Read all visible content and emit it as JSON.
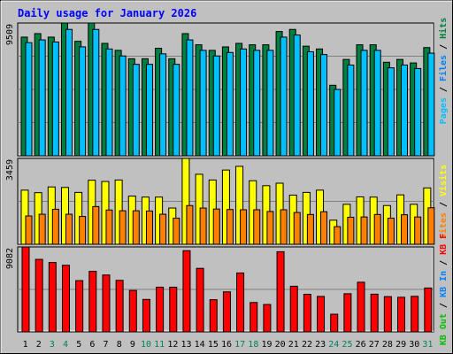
{
  "title": "Daily usage for January 2026",
  "colors": {
    "background": "#c0c0c0",
    "hits": "#008040",
    "files": "#0080ff",
    "pages": "#00c0ff",
    "visits": "#ffff00",
    "sites": "#ff8000",
    "kbytes": "#ff0000",
    "kb_in": "#0080ff",
    "kb_out": "#00c000",
    "title": "#0000ff",
    "weekend": "#00805c"
  },
  "chart_data": [
    {
      "type": "bar",
      "name": "hits-files-pages",
      "categories": [
        "1",
        "2",
        "3",
        "4",
        "5",
        "6",
        "7",
        "8",
        "9",
        "10",
        "11",
        "12",
        "13",
        "14",
        "15",
        "16",
        "17",
        "18",
        "19",
        "20",
        "21",
        "22",
        "23",
        "24",
        "25",
        "26",
        "27",
        "28",
        "29",
        "30",
        "31"
      ],
      "weekend_days": [
        "3",
        "4",
        "10",
        "11",
        "17",
        "18",
        "24",
        "25",
        "31"
      ],
      "ylim": [
        0,
        9509
      ],
      "y_max_label": "9509",
      "legend": [
        "Hits",
        "/",
        "Files",
        "/",
        "Pages"
      ],
      "series": [
        {
          "name": "Hits",
          "values": [
            8500,
            8750,
            8500,
            9509,
            8200,
            9509,
            8050,
            7550,
            6950,
            6950,
            7700,
            6950,
            8750,
            7950,
            7550,
            7800,
            8050,
            7950,
            7950,
            8900,
            9050,
            7850,
            7650,
            5050,
            6900,
            7950,
            7950,
            6700,
            6900,
            6650,
            7750
          ]
        },
        {
          "name": "Files",
          "values": [
            8100,
            8300,
            8150,
            9050,
            7800,
            9050,
            7650,
            7150,
            6550,
            6550,
            7300,
            6550,
            8300,
            7550,
            7150,
            7400,
            7650,
            7550,
            7550,
            8500,
            8650,
            7450,
            7250,
            4750,
            6500,
            7550,
            7550,
            6300,
            6500,
            6250,
            7350
          ]
        },
        {
          "name": "Pages",
          "values": [
            8100,
            8300,
            8150,
            9050,
            7800,
            9050,
            7650,
            7150,
            6550,
            6550,
            7300,
            6550,
            8300,
            7550,
            7150,
            7400,
            7650,
            7550,
            7550,
            8500,
            8650,
            7450,
            7250,
            4750,
            6500,
            7550,
            7550,
            6300,
            6500,
            6250,
            7350
          ]
        }
      ]
    },
    {
      "type": "bar",
      "name": "visits-sites",
      "categories": [
        "1",
        "2",
        "3",
        "4",
        "5",
        "6",
        "7",
        "8",
        "9",
        "10",
        "11",
        "12",
        "13",
        "14",
        "15",
        "16",
        "17",
        "18",
        "19",
        "20",
        "21",
        "22",
        "23",
        "24",
        "25",
        "26",
        "27",
        "28",
        "29",
        "30",
        "31"
      ],
      "ylim": [
        0,
        3459
      ],
      "y_max_label": "3459",
      "legend": [
        "Visits",
        "/",
        "Sites"
      ],
      "series": [
        {
          "name": "Visits",
          "values": [
            2180,
            2080,
            2310,
            2290,
            2090,
            2580,
            2530,
            2590,
            1940,
            1900,
            1900,
            1460,
            3459,
            2820,
            2590,
            2990,
            3140,
            2560,
            2360,
            2460,
            1980,
            2090,
            2180,
            970,
            1610,
            1910,
            1900,
            1560,
            1990,
            1610,
            2270
          ]
        },
        {
          "name": "Sites",
          "values": [
            1140,
            1210,
            1410,
            1210,
            1120,
            1520,
            1380,
            1350,
            1350,
            1340,
            1210,
            1050,
            1560,
            1460,
            1420,
            1400,
            1390,
            1390,
            1320,
            1390,
            1280,
            1200,
            1310,
            710,
            1090,
            1100,
            1200,
            1050,
            1190,
            1100,
            1470
          ]
        }
      ]
    },
    {
      "type": "bar",
      "name": "kbytes",
      "categories": [
        "1",
        "2",
        "3",
        "4",
        "5",
        "6",
        "7",
        "8",
        "9",
        "10",
        "11",
        "12",
        "13",
        "14",
        "15",
        "16",
        "17",
        "18",
        "19",
        "20",
        "21",
        "22",
        "23",
        "24",
        "25",
        "26",
        "27",
        "28",
        "29",
        "30",
        "31"
      ],
      "ylim": [
        0,
        9082
      ],
      "y_max_label": "9082",
      "legend": [
        "KBytes",
        "/",
        "KB In",
        "/",
        "KB Out",
        "/",
        "KB F"
      ],
      "legend_display": [
        "KB F",
        "/",
        "KB In",
        "/",
        "KB Out"
      ],
      "series": [
        {
          "name": "KBytes",
          "values": [
            9082,
            7750,
            7420,
            7120,
            5480,
            6470,
            6080,
            5510,
            4430,
            3470,
            4780,
            4780,
            8680,
            6790,
            3440,
            4280,
            6300,
            3140,
            2930,
            8570,
            4880,
            4020,
            3790,
            1890,
            4080,
            5310,
            4030,
            3770,
            3700,
            3800,
            4690
          ]
        }
      ]
    }
  ]
}
